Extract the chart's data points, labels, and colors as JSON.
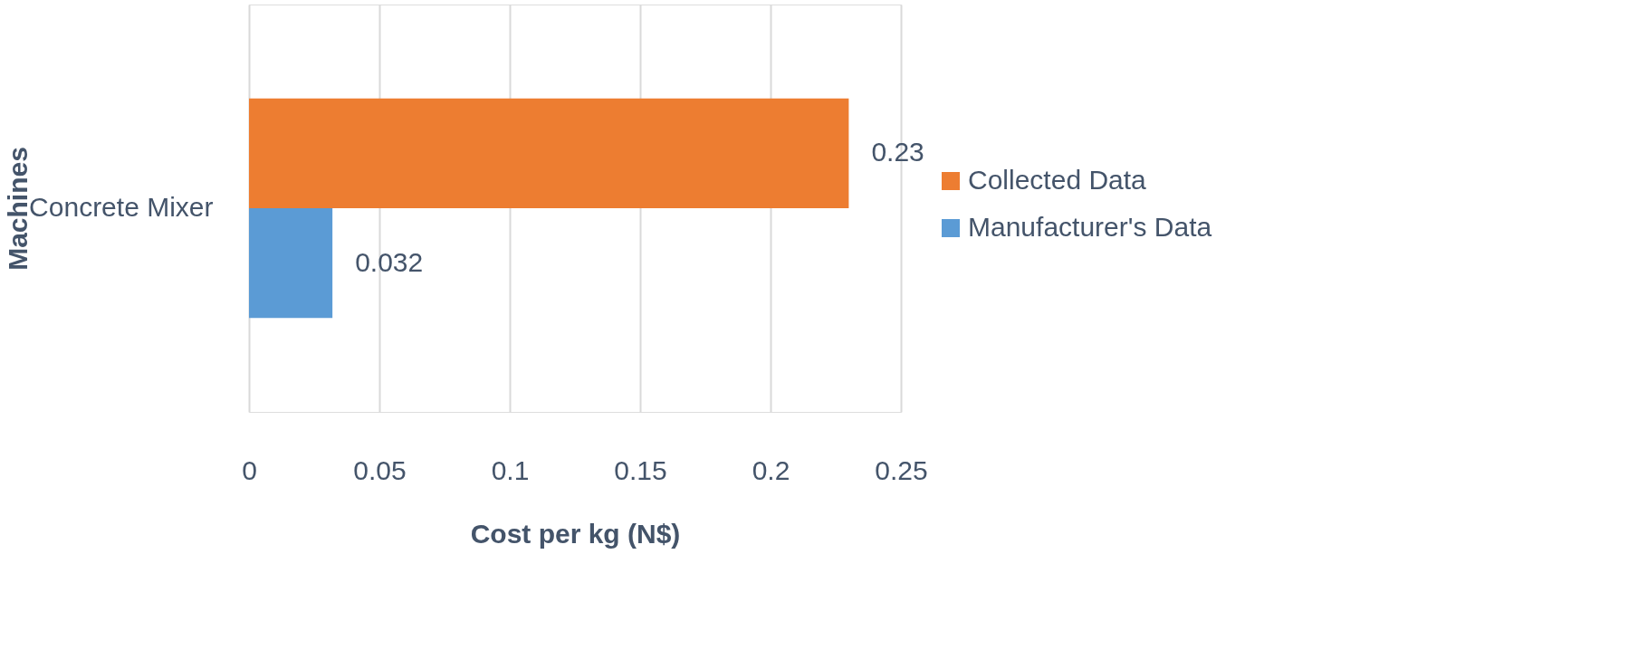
{
  "chart_data": {
    "type": "bar",
    "orientation": "horizontal",
    "xlabel": "Cost per kg (N$)",
    "ylabel": "Machines",
    "categories": [
      "Concrete Mixer"
    ],
    "series": [
      {
        "name": "Collected Data",
        "color": "#ed7d31",
        "values": [
          0.23
        ]
      },
      {
        "name": "Manufacturer's Data",
        "color": "#5b9bd5",
        "values": [
          0.032
        ]
      }
    ],
    "xlim": [
      0,
      0.25
    ],
    "xticks": [
      0,
      0.05,
      0.1,
      0.15,
      0.2,
      0.25
    ],
    "grid": "x",
    "legend": "right",
    "data_labels": true
  }
}
